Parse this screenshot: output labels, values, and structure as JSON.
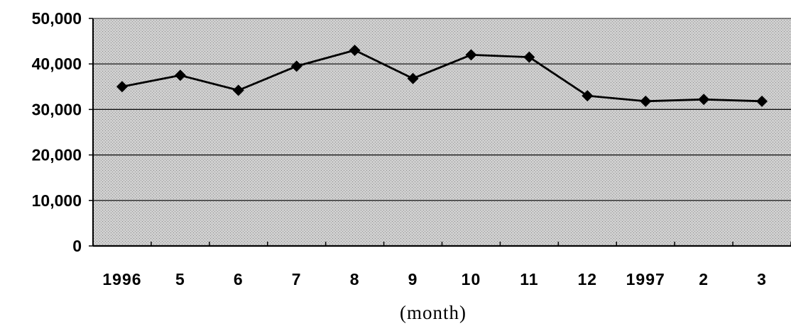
{
  "chart_data": {
    "type": "line",
    "title": "",
    "xlabel": "(month)",
    "ylabel": "",
    "categories": [
      "1996",
      "5",
      "6",
      "7",
      "8",
      "9",
      "10",
      "11",
      "12",
      "1997",
      "2",
      "3"
    ],
    "y_tick_labels": [
      "0",
      "10,000",
      "20,000",
      "30,000",
      "40,000",
      "50,000"
    ],
    "y_tick_values": [
      0,
      10000,
      20000,
      30000,
      40000,
      50000
    ],
    "ylim": [
      0,
      50000
    ],
    "grid": true,
    "legend": "none",
    "marker": "diamond",
    "series": [
      {
        "values": [
          35000,
          37500,
          34200,
          39500,
          43000,
          36800,
          42000,
          41500,
          33000,
          31800,
          32200,
          31800
        ],
        "color": "#000000"
      }
    ],
    "plot_background": "#c8c8c8"
  }
}
